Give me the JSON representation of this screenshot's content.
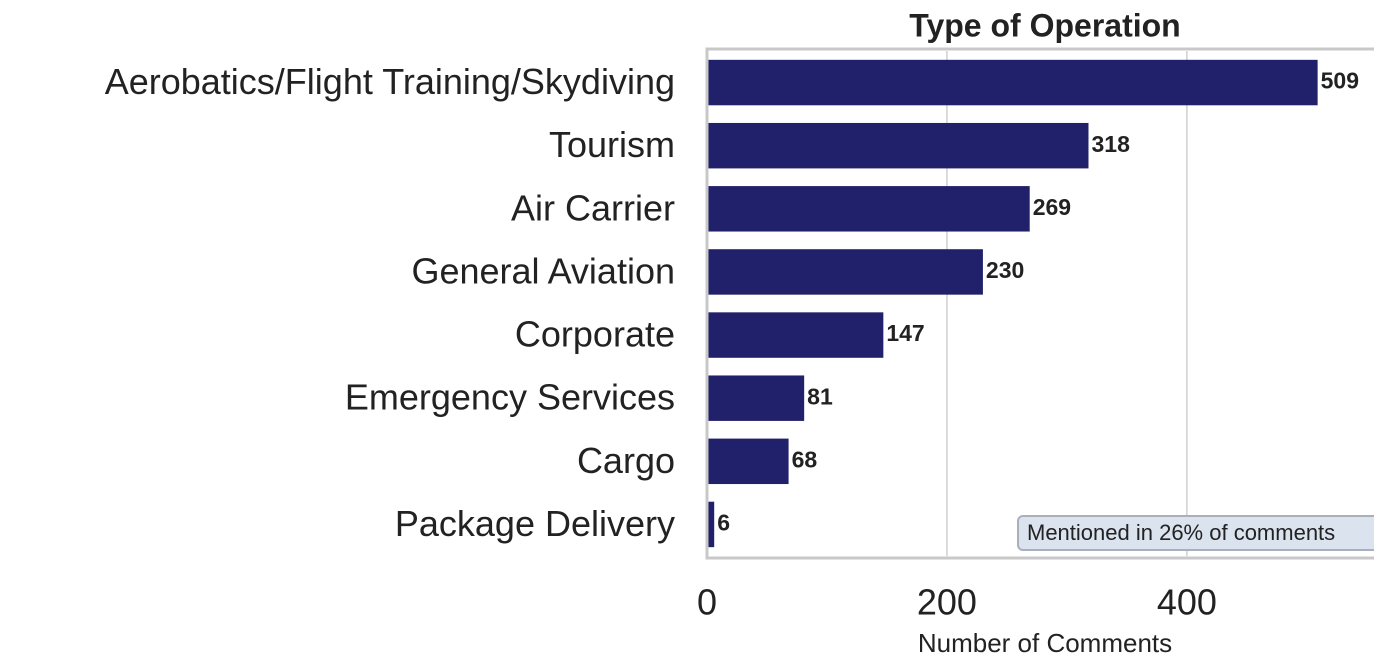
{
  "chart_data": {
    "type": "barh",
    "title": "Type of Operation",
    "categories": [
      "Aerobatics/Flight Training/Skydiving",
      "Tourism",
      "Air Carrier",
      "General Aviation",
      "Corporate",
      "Emergency Services",
      "Cargo",
      "Package Delivery"
    ],
    "values": [
      509,
      318,
      269,
      230,
      147,
      81,
      68,
      6
    ],
    "color": "#21206a",
    "xlabel": "Number of Comments",
    "xlim": [
      0,
      556
    ],
    "xticks": [
      0,
      200,
      400
    ],
    "grid": true,
    "annotation": "Mentioned in 26% of comments"
  }
}
